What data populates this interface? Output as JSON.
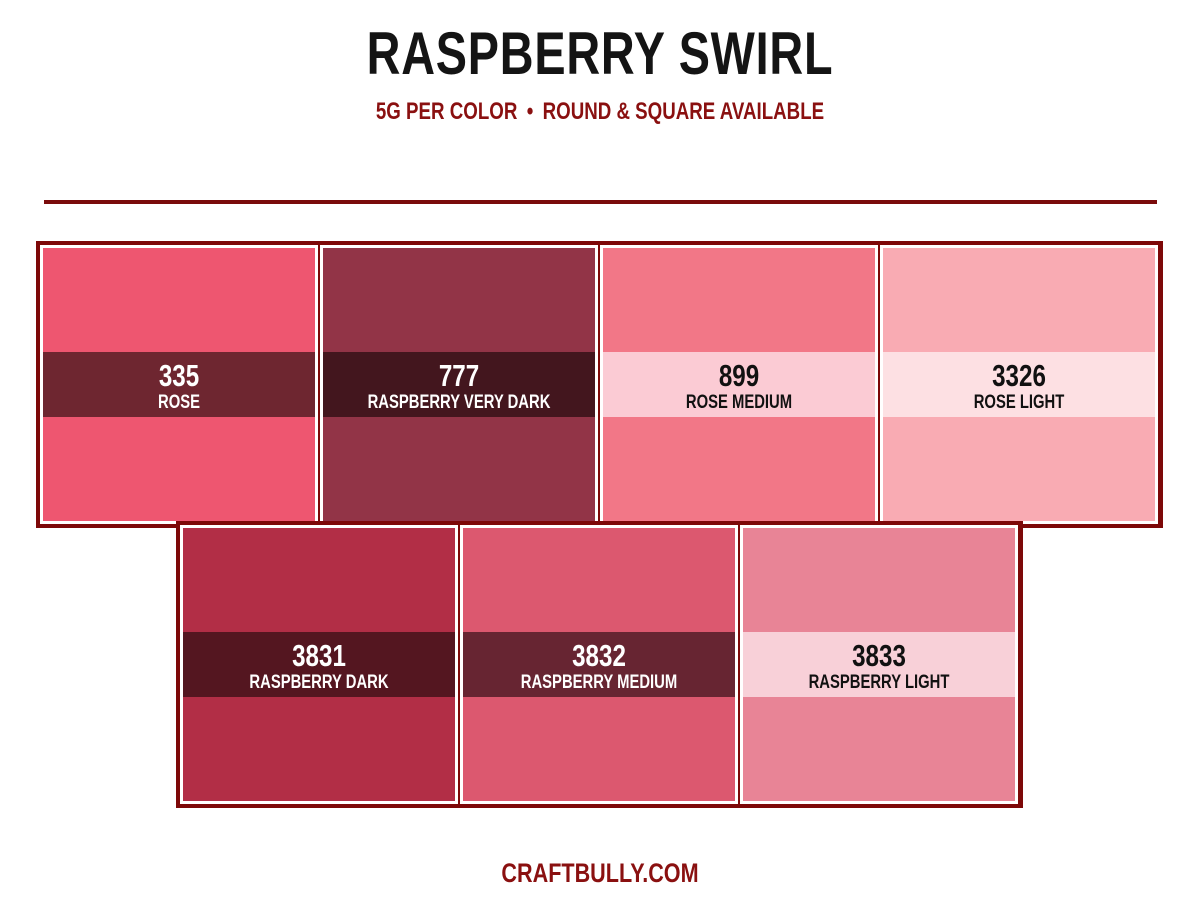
{
  "header": {
    "title": "RASPBERRY SWIRL",
    "subtitle_left": "5G PER COLOR",
    "subtitle_separator": "•",
    "subtitle_right": "ROUND & SQUARE AVAILABLE"
  },
  "swatches": [
    {
      "code": "335",
      "name": "ROSE",
      "color": "#ee5670",
      "band_color": "#6e2630",
      "text_color": "#ffffff"
    },
    {
      "code": "777",
      "name": "RASPBERRY VERY DARK",
      "color": "#923447",
      "band_color": "#43161e",
      "text_color": "#ffffff"
    },
    {
      "code": "899",
      "name": "ROSE MEDIUM",
      "color": "#f27787",
      "band_color": "#fbcbd4",
      "text_color": "#111111"
    },
    {
      "code": "3326",
      "name": "ROSE LIGHT",
      "color": "#f9abb3",
      "band_color": "#fde0e3",
      "text_color": "#111111"
    },
    {
      "code": "3831",
      "name": "RASPBERRY DARK",
      "color": "#b22e46",
      "band_color": "#541620",
      "text_color": "#ffffff"
    },
    {
      "code": "3832",
      "name": "RASPBERRY MEDIUM",
      "color": "#dc586f",
      "band_color": "#672532",
      "text_color": "#ffffff"
    },
    {
      "code": "3833",
      "name": "RASPBERRY LIGHT",
      "color": "#e88496",
      "band_color": "#f8d0d8",
      "text_color": "#111111"
    }
  ],
  "footer": {
    "site": "CRAFTBULLY.COM"
  },
  "colors": {
    "accent": "#8a1010",
    "frame": "#7d0808",
    "title": "#141414"
  }
}
